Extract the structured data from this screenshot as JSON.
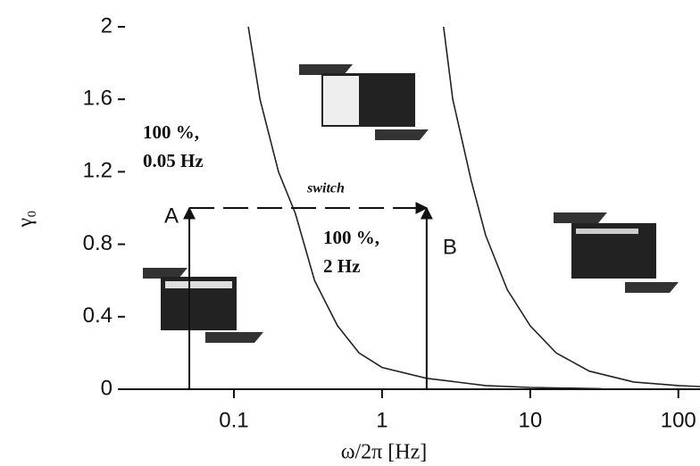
{
  "chart_data": {
    "type": "line",
    "x_label": "ω/2π [Hz]",
    "y_label": "γ₀",
    "xscale": "log",
    "xlim": [
      0.0184,
      140
    ],
    "ylim": [
      0,
      2
    ],
    "xticks": [
      0.1,
      1,
      10,
      100
    ],
    "yticks": [
      0,
      0.4,
      0.8,
      1.2,
      1.6,
      2
    ],
    "series": [
      {
        "color": "#222",
        "x": [
          0.125,
          0.15,
          0.2,
          0.26,
          0.35,
          0.5,
          0.7,
          1,
          2,
          5,
          10,
          30
        ],
        "values": [
          2,
          1.6,
          1.2,
          0.97,
          0.6,
          0.35,
          0.2,
          0.12,
          0.06,
          0.02,
          0.01,
          0.003
        ]
      },
      {
        "color": "#222",
        "x": [
          2.6,
          3,
          4,
          5,
          7,
          10,
          15,
          25,
          50,
          100,
          140
        ],
        "values": [
          2,
          1.6,
          1.15,
          0.85,
          0.55,
          0.35,
          0.2,
          0.1,
          0.04,
          0.02,
          0.015
        ]
      }
    ],
    "arrows": [
      {
        "label": "A",
        "x": 0.05,
        "y": 1
      },
      {
        "label": "B",
        "x": 2,
        "y": 1
      }
    ],
    "switch_label": "switch",
    "annotations": [
      [
        "100 %,",
        "0.05 Hz"
      ],
      [
        "100 %,",
        "2 Hz"
      ]
    ]
  }
}
